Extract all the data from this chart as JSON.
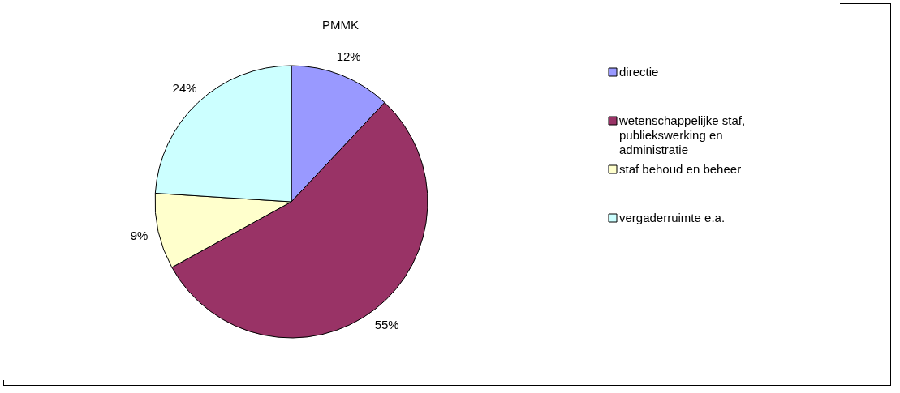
{
  "chart_data": {
    "type": "pie",
    "title": "PMMK",
    "categories": [
      "directie",
      "wetenschappelijke staf, publiekswerking en administratie",
      "staf behoud en beheer",
      "vergaderruimte e.a."
    ],
    "values": [
      12,
      55,
      9,
      24
    ],
    "colors": [
      "#9999ff",
      "#993366",
      "#ffffcc",
      "#ccffff"
    ],
    "value_labels": [
      "12%",
      "55%",
      "9%",
      "24%"
    ],
    "legend": "right"
  }
}
